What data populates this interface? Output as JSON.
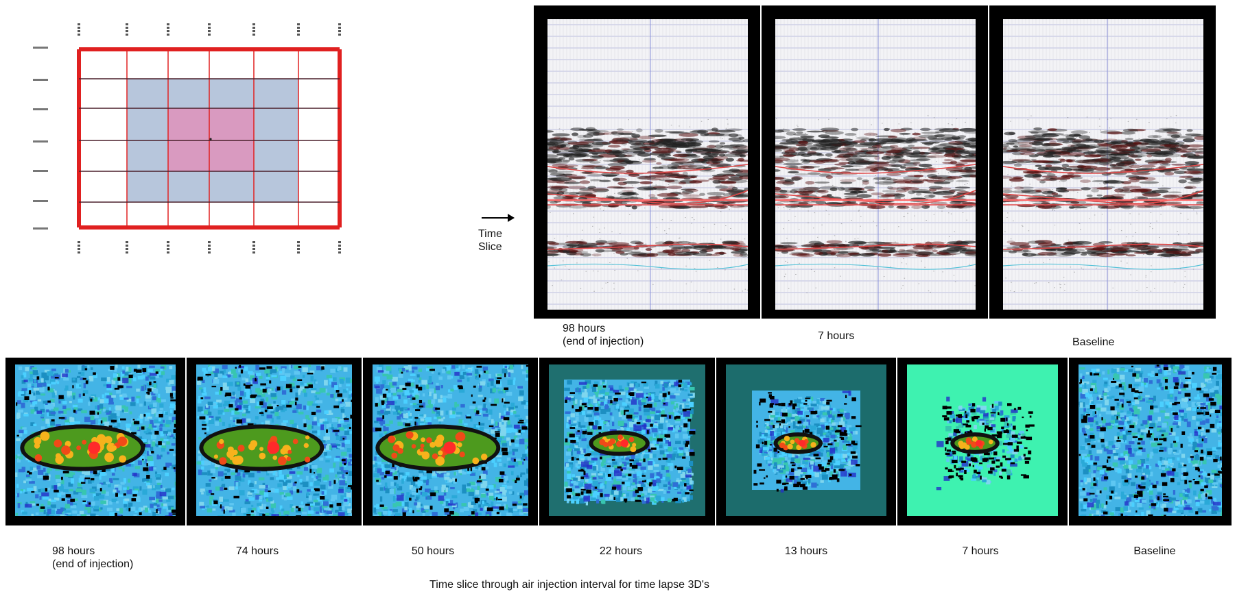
{
  "arrow_label": "Time\nSlice",
  "seismic_panels": [
    {
      "label": "98 hours\n(end of injection)"
    },
    {
      "label": "7 hours"
    },
    {
      "label": "Baseline"
    }
  ],
  "time_slices": [
    {
      "label": "98 hours\n(end of injection)",
      "style": "full"
    },
    {
      "label": "74 hours",
      "style": "full"
    },
    {
      "label": "50 hours",
      "style": "full"
    },
    {
      "label": "22 hours",
      "style": "teal"
    },
    {
      "label": "13 hours",
      "style": "teal-small"
    },
    {
      "label": "7 hours",
      "style": "mint"
    },
    {
      "label": "Baseline",
      "style": "baseline"
    }
  ],
  "caption": "Time slice through air injection interval for time lapse 3D's",
  "colors": {
    "grid_red": "#e02020",
    "cell_blue": "#b7c6dc",
    "cell_pink": "#d99ac0",
    "horizon_red": "#e04848",
    "seis_line_blue": "#8a90d8"
  }
}
